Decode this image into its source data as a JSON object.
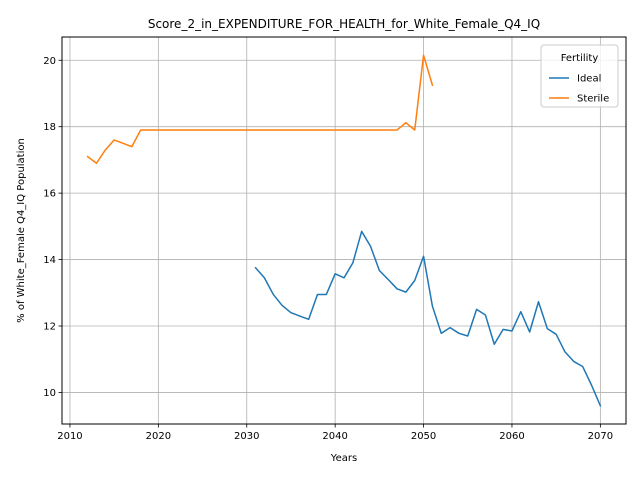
{
  "chart_data": {
    "type": "line",
    "title": "Score_2_in_EXPENDITURE_FOR_HEALTH_for_White_Female_Q4_IQ",
    "xlabel": "Years",
    "ylabel": "% of White_Female Q4_IQ Population",
    "xlim": [
      2009.1,
      2072.9
    ],
    "ylim": [
      9.05,
      20.7
    ],
    "x_ticks": [
      2010,
      2020,
      2030,
      2040,
      2050,
      2060,
      2070
    ],
    "y_ticks": [
      10,
      12,
      14,
      16,
      18,
      20
    ],
    "grid": true,
    "legend": {
      "title": "Fertility",
      "placement": "top-right"
    },
    "series": [
      {
        "name": "Ideal",
        "color": "#1f77b4",
        "x": [
          2031,
          2032,
          2033,
          2034,
          2035,
          2036,
          2037,
          2038,
          2039,
          2040,
          2041,
          2042,
          2043,
          2044,
          2045,
          2046,
          2047,
          2048,
          2049,
          2050,
          2051,
          2052,
          2053,
          2054,
          2055,
          2056,
          2057,
          2058,
          2059,
          2060,
          2061,
          2062,
          2063,
          2064,
          2065,
          2066,
          2067,
          2068,
          2069,
          2070
        ],
        "values": [
          13.75,
          13.45,
          12.95,
          12.62,
          12.4,
          12.3,
          12.2,
          12.95,
          12.95,
          13.57,
          13.45,
          13.9,
          14.85,
          14.4,
          13.67,
          13.4,
          13.12,
          13.02,
          13.37,
          14.1,
          12.6,
          11.78,
          11.95,
          11.78,
          11.7,
          12.5,
          12.33,
          11.45,
          11.9,
          11.85,
          12.43,
          11.82,
          12.73,
          11.92,
          11.75,
          11.22,
          10.93,
          10.78,
          10.22,
          9.6
        ]
      },
      {
        "name": "Sterile",
        "color": "#ff7f0e",
        "x": [
          2012,
          2013,
          2014,
          2015,
          2016,
          2017,
          2018,
          2019,
          2020,
          2021,
          2022,
          2023,
          2024,
          2025,
          2026,
          2027,
          2028,
          2029,
          2030,
          2031,
          2032,
          2033,
          2034,
          2035,
          2036,
          2037,
          2038,
          2039,
          2040,
          2041,
          2042,
          2043,
          2044,
          2045,
          2046,
          2047,
          2048,
          2049,
          2050,
          2051
        ],
        "values": [
          17.1,
          16.9,
          17.3,
          17.6,
          17.5,
          17.4,
          17.9,
          17.9,
          17.9,
          17.9,
          17.9,
          17.9,
          17.9,
          17.9,
          17.9,
          17.9,
          17.9,
          17.9,
          17.9,
          17.9,
          17.9,
          17.9,
          17.9,
          17.9,
          17.9,
          17.9,
          17.9,
          17.9,
          17.9,
          17.9,
          17.9,
          17.9,
          17.9,
          17.9,
          17.9,
          17.9,
          18.12,
          17.9,
          20.15,
          19.25
        ]
      }
    ]
  }
}
